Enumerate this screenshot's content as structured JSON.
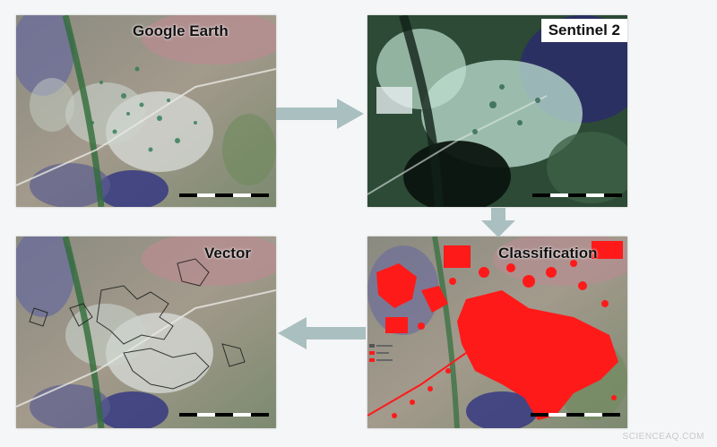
{
  "panels": {
    "google_earth": {
      "label": "Google Earth"
    },
    "sentinel": {
      "label": "Sentinel 2"
    },
    "vector": {
      "label": "Vector"
    },
    "classification": {
      "label": "Classification"
    }
  },
  "colors": {
    "background": "#f5f6f7",
    "arrow": "#a9bfc0",
    "classification_fill": "#ff1a1a",
    "vector_outline": "#1b1b1b"
  },
  "watermark": "SCIENCEAQ.COM"
}
